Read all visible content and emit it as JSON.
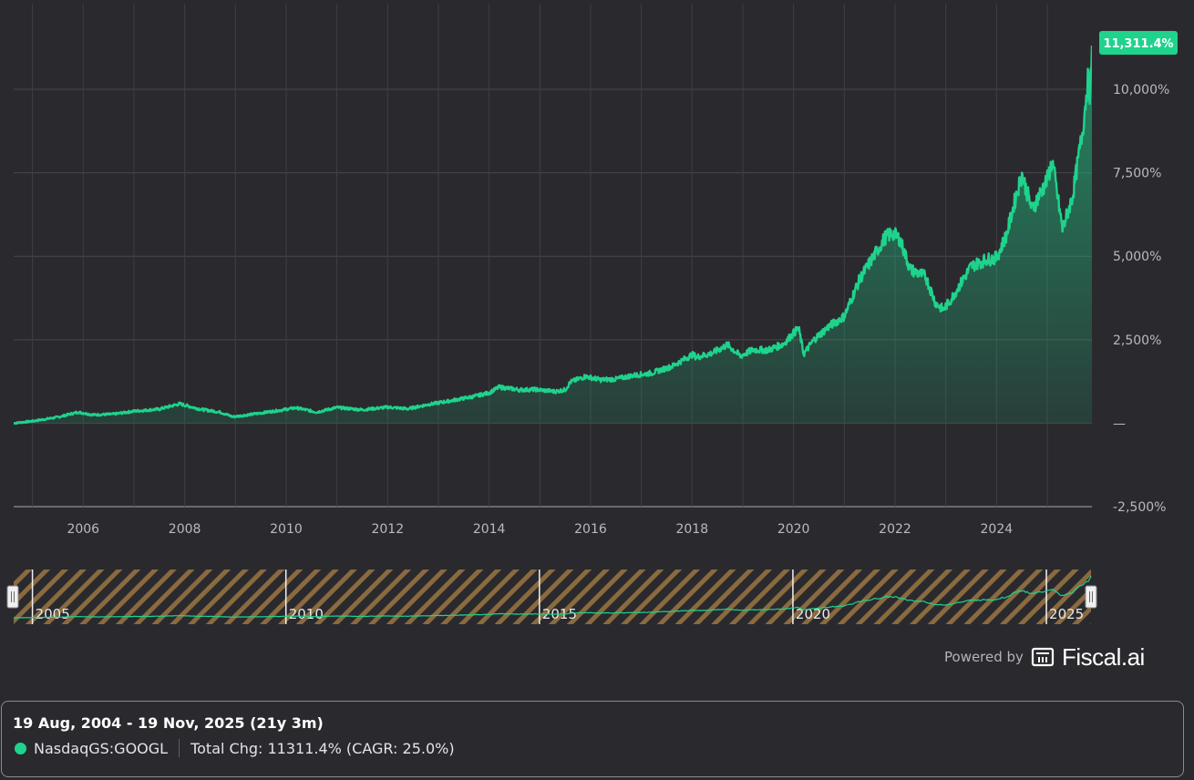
{
  "chart_data": {
    "type": "area",
    "series": [
      {
        "name": "NasdaqGS:GOOGL",
        "color": "#1fd38c",
        "points": [
          [
            2004.63,
            0
          ],
          [
            2005.0,
            60
          ],
          [
            2005.5,
            180
          ],
          [
            2005.9,
            330
          ],
          [
            2006.2,
            250
          ],
          [
            2006.6,
            270
          ],
          [
            2007.0,
            360
          ],
          [
            2007.5,
            420
          ],
          [
            2007.9,
            580
          ],
          [
            2008.3,
            420
          ],
          [
            2008.7,
            330
          ],
          [
            2008.95,
            190
          ],
          [
            2009.3,
            260
          ],
          [
            2009.8,
            370
          ],
          [
            2010.2,
            460
          ],
          [
            2010.6,
            330
          ],
          [
            2011.0,
            470
          ],
          [
            2011.5,
            400
          ],
          [
            2012.0,
            480
          ],
          [
            2012.4,
            430
          ],
          [
            2012.8,
            560
          ],
          [
            2013.2,
            660
          ],
          [
            2013.7,
            800
          ],
          [
            2014.0,
            910
          ],
          [
            2014.2,
            1080
          ],
          [
            2014.6,
            1000
          ],
          [
            2014.9,
            1010
          ],
          [
            2015.3,
            950
          ],
          [
            2015.5,
            1000
          ],
          [
            2015.6,
            1230
          ],
          [
            2015.9,
            1400
          ],
          [
            2016.2,
            1300
          ],
          [
            2016.5,
            1320
          ],
          [
            2016.8,
            1420
          ],
          [
            2017.2,
            1500
          ],
          [
            2017.6,
            1700
          ],
          [
            2018.0,
            2050
          ],
          [
            2018.1,
            1980
          ],
          [
            2018.4,
            2100
          ],
          [
            2018.7,
            2350
          ],
          [
            2018.95,
            2010
          ],
          [
            2019.2,
            2200
          ],
          [
            2019.5,
            2190
          ],
          [
            2019.8,
            2370
          ],
          [
            2020.0,
            2700
          ],
          [
            2020.1,
            2850
          ],
          [
            2020.2,
            2070
          ],
          [
            2020.4,
            2500
          ],
          [
            2020.7,
            2900
          ],
          [
            2021.0,
            3200
          ],
          [
            2021.3,
            4300
          ],
          [
            2021.5,
            4800
          ],
          [
            2021.8,
            5550
          ],
          [
            2021.95,
            5700
          ],
          [
            2022.1,
            5500
          ],
          [
            2022.3,
            4600
          ],
          [
            2022.6,
            4400
          ],
          [
            2022.8,
            3600
          ],
          [
            2022.95,
            3400
          ],
          [
            2023.1,
            3700
          ],
          [
            2023.3,
            4200
          ],
          [
            2023.5,
            4700
          ],
          [
            2023.8,
            4900
          ],
          [
            2024.0,
            4950
          ],
          [
            2024.2,
            5650
          ],
          [
            2024.4,
            6900
          ],
          [
            2024.5,
            7450
          ],
          [
            2024.7,
            6400
          ],
          [
            2024.9,
            7000
          ],
          [
            2025.0,
            7300
          ],
          [
            2025.1,
            7850
          ],
          [
            2025.3,
            5800
          ],
          [
            2025.5,
            6800
          ],
          [
            2025.7,
            8800
          ],
          [
            2025.8,
            10300
          ],
          [
            2025.85,
            9800
          ],
          [
            2025.88,
            11311.4
          ]
        ]
      }
    ],
    "x_ticks": [
      "2006",
      "2008",
      "2010",
      "2012",
      "2014",
      "2016",
      "2018",
      "2020",
      "2022",
      "2024"
    ],
    "y_ticks": [
      "10,000%",
      "7,500%",
      "5,000%",
      "2,500%",
      "—",
      "-2,500%"
    ],
    "y_tick_values": [
      10000,
      7500,
      5000,
      2500,
      0,
      -2500
    ],
    "xlim": [
      2004.63,
      2025.88
    ],
    "ylim": [
      -2500,
      11311.4
    ],
    "last_value_label": "11,311.4%",
    "navigator_ticks": [
      "2005",
      "2010",
      "2015",
      "2020",
      "2025"
    ],
    "grid": true,
    "legend": "bottom"
  },
  "branding": {
    "powered_by": "Powered by",
    "logo_text": "Fiscal.ai"
  },
  "info": {
    "date_range": "19 Aug, 2004 - 19 Nov, 2025 (21y 3m)",
    "series_label": "NasdaqGS:GOOGL",
    "total_change": "Total Chg: 11311.4% (CAGR: 25.0%)"
  }
}
